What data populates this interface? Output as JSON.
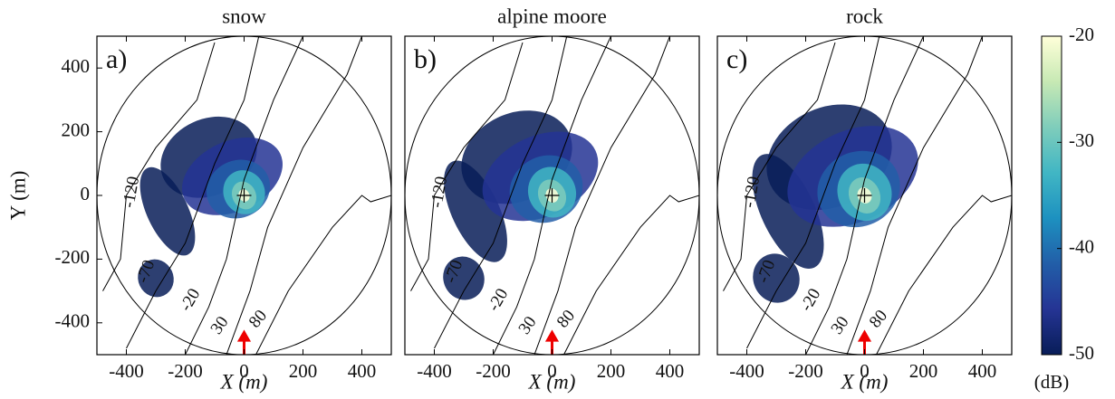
{
  "chart_data": [
    {
      "type": "heatmap",
      "title": "snow",
      "panel_label": "a)",
      "xlabel": "X (m)",
      "ylabel": "Y (m)",
      "xlim": [
        -500,
        500
      ],
      "xticks": [
        -400,
        -200,
        0,
        200,
        400
      ],
      "ylim": [
        -500,
        500
      ],
      "yticks": [
        -400,
        -200,
        0,
        200,
        400
      ],
      "contour_labels": [
        "-120",
        "-70",
        "-20",
        "30",
        "80"
      ]
    },
    {
      "type": "heatmap",
      "title": "alpine moore",
      "panel_label": "b)",
      "xlabel": "X (m)",
      "xlim": [
        -500,
        500
      ],
      "xticks": [
        -400,
        -200,
        0,
        200,
        400
      ],
      "ylim": [
        -500,
        500
      ],
      "contour_labels": [
        "-120",
        "-70",
        "-20",
        "30",
        "80"
      ]
    },
    {
      "type": "heatmap",
      "title": "rock",
      "panel_label": "c)",
      "xlabel": "X (m)",
      "xlim": [
        -500,
        500
      ],
      "xticks": [
        -400,
        -200,
        0,
        200,
        400
      ],
      "ylim": [
        -500,
        500
      ],
      "contour_labels": [
        "-120",
        "-70",
        "-20",
        "30",
        "80"
      ]
    }
  ],
  "colorbar": {
    "label": "(dB)",
    "lim": [
      -50,
      -20
    ],
    "ticks": [
      -20,
      -30,
      -40,
      -50
    ],
    "colormap": [
      "#081d58",
      "#253494",
      "#225ea8",
      "#1d91c0",
      "#41b6c4",
      "#7fcdbb",
      "#c7e9b4",
      "#ffffd9"
    ]
  }
}
